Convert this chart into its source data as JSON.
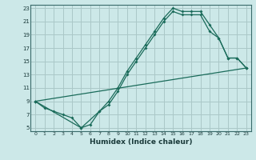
{
  "xlabel": "Humidex (Indice chaleur)",
  "ylabel": "",
  "bg_color": "#cce8e8",
  "grid_color": "#aac8c8",
  "line_color": "#1a6b5a",
  "xlim": [
    -0.5,
    23.5
  ],
  "ylim": [
    4.5,
    23.5
  ],
  "xticks": [
    0,
    1,
    2,
    3,
    4,
    5,
    6,
    7,
    8,
    9,
    10,
    11,
    12,
    13,
    14,
    15,
    16,
    17,
    18,
    19,
    20,
    21,
    22,
    23
  ],
  "yticks": [
    5,
    7,
    9,
    11,
    13,
    15,
    17,
    19,
    21,
    23
  ],
  "line1_x": [
    0,
    1,
    2,
    3,
    4,
    5,
    6,
    7,
    8,
    9,
    10,
    11,
    12,
    13,
    14,
    15,
    16,
    17,
    18,
    19,
    20,
    21,
    22,
    23
  ],
  "line1_y": [
    9,
    8,
    7.5,
    7,
    6.5,
    5,
    5.5,
    7.5,
    9,
    11,
    13.5,
    15.5,
    17.5,
    19.5,
    21.5,
    23,
    22.5,
    22.5,
    22.5,
    20.5,
    18.5,
    15.5,
    15.5,
    14
  ],
  "line2_x": [
    0,
    5,
    7,
    8,
    9,
    10,
    11,
    12,
    13,
    14,
    15,
    16,
    17,
    18,
    19,
    20,
    21,
    22,
    23
  ],
  "line2_y": [
    9,
    5,
    7.5,
    8.5,
    10.5,
    13,
    15,
    17,
    19,
    21,
    22.5,
    22,
    22,
    22,
    19.5,
    18.5,
    15.5,
    15.5,
    14
  ],
  "line3_x": [
    0,
    23
  ],
  "line3_y": [
    9,
    14
  ]
}
